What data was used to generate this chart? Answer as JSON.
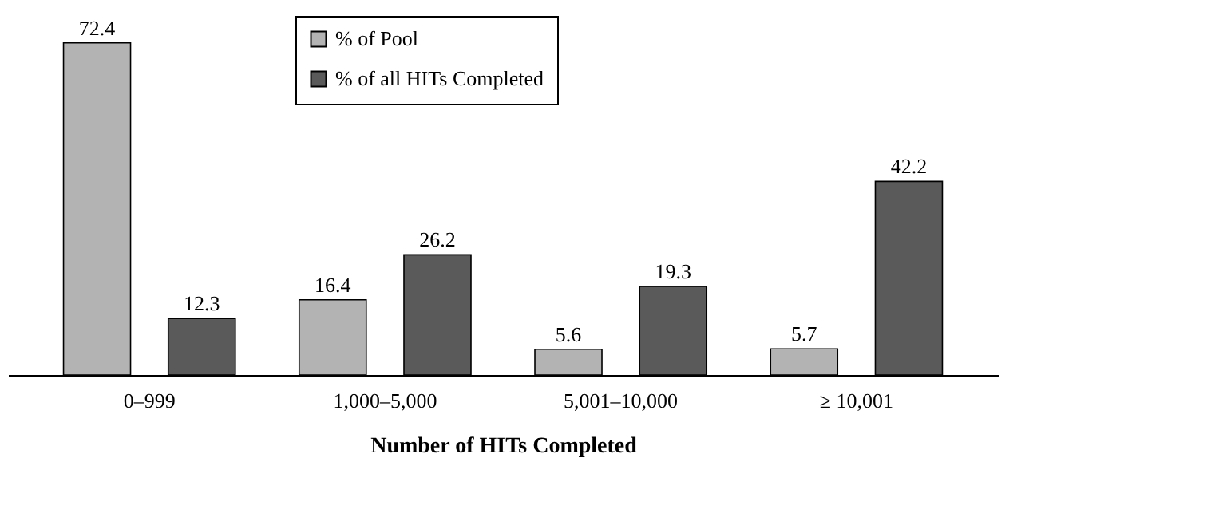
{
  "chart_data": {
    "type": "bar",
    "xlabel": "Number of HITs Completed",
    "categories": [
      "0–999",
      "1,000–5,000",
      "5,001–10,000",
      "≥ 10,001"
    ],
    "series": [
      {
        "name": "% of Pool",
        "color": "#b3b3b3",
        "values": [
          72.4,
          16.4,
          5.6,
          5.7
        ]
      },
      {
        "name": "% of all HITs Completed",
        "color": "#5a5a5a",
        "values": [
          12.3,
          26.2,
          19.3,
          42.2
        ]
      }
    ],
    "data_labels": true,
    "legend": "top",
    "grid": false
  }
}
